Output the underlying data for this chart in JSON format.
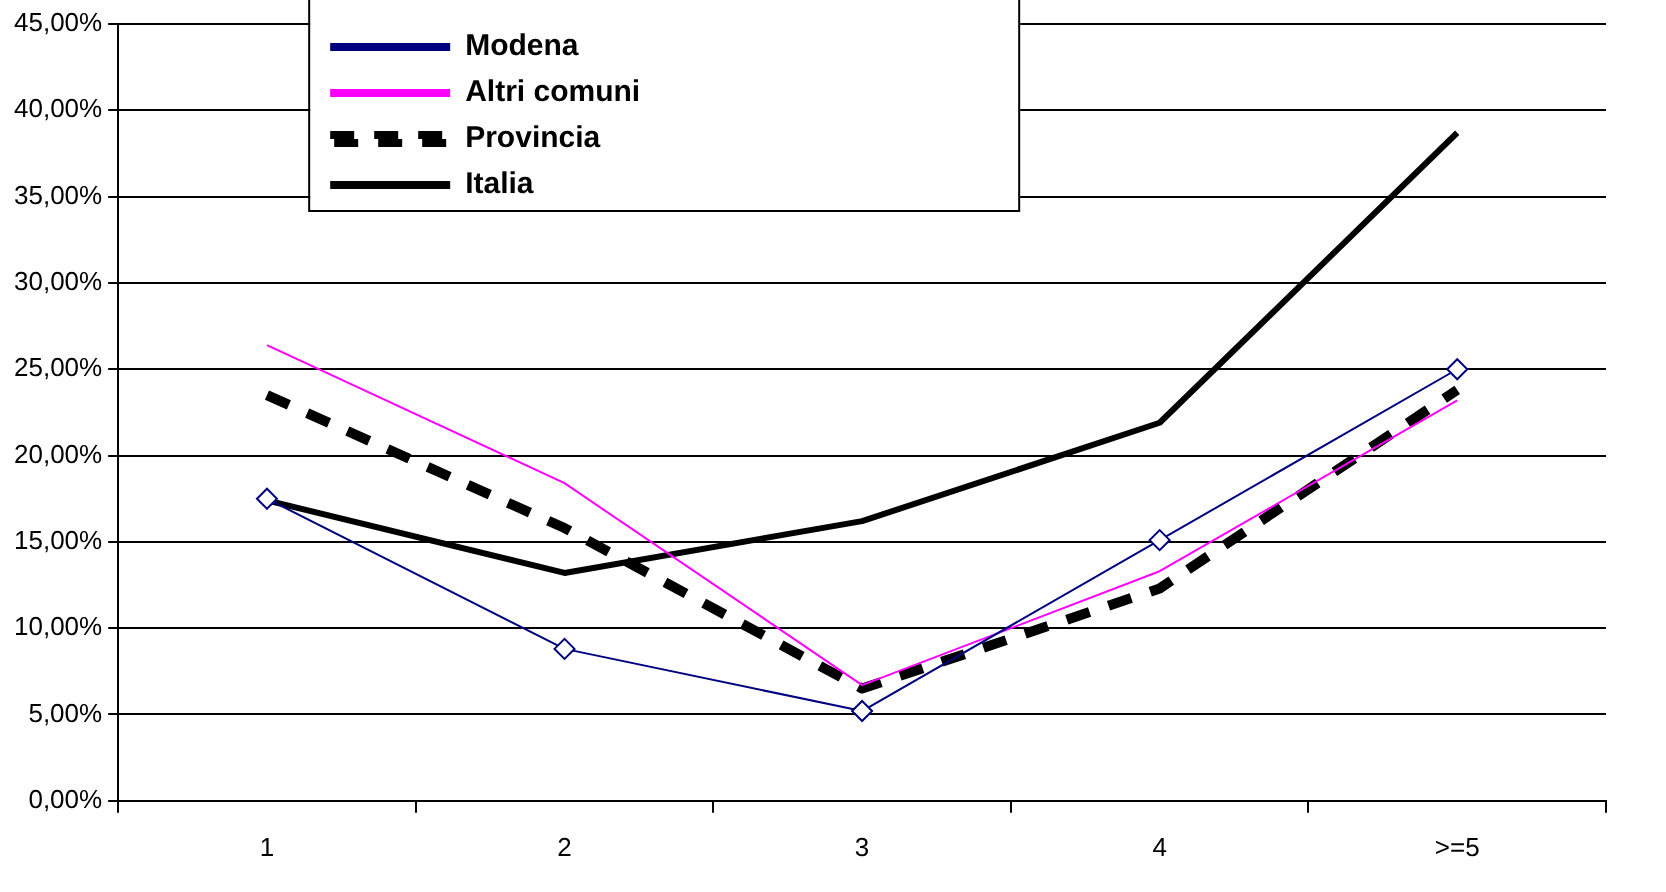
{
  "chart_data": {
    "type": "line",
    "categories": [
      "1",
      "2",
      "3",
      "4",
      ">=5"
    ],
    "series": [
      {
        "name": "Modena",
        "color": "#000080",
        "values": [
          17.5,
          8.8,
          5.2,
          15.1,
          25.0
        ],
        "marker": "diamond",
        "line_style": "solid"
      },
      {
        "name": "Altri comuni",
        "color": "#ff00ff",
        "values": [
          26.4,
          18.4,
          6.7,
          13.3,
          23.2
        ],
        "marker": "none",
        "line_style": "solid"
      },
      {
        "name": "Provincia",
        "color": "#000000",
        "values": [
          23.5,
          15.8,
          6.5,
          12.3,
          23.8
        ],
        "marker": "none",
        "line_style": "dashed"
      },
      {
        "name": "Italia",
        "color": "#000000",
        "values": [
          17.4,
          13.2,
          16.2,
          21.9,
          38.7
        ],
        "marker": "none",
        "line_style": "solid"
      }
    ],
    "ylim": [
      0,
      45
    ],
    "yticks": [
      {
        "value": 0,
        "label": "0,00%"
      },
      {
        "value": 5,
        "label": "5,00%"
      },
      {
        "value": 10,
        "label": "10,00%"
      },
      {
        "value": 15,
        "label": "15,00%"
      },
      {
        "value": 20,
        "label": "20,00%"
      },
      {
        "value": 25,
        "label": "25,00%"
      },
      {
        "value": 30,
        "label": "30,00%"
      },
      {
        "value": 35,
        "label": "35,00%"
      },
      {
        "value": 40,
        "label": "40,00%"
      },
      {
        "value": 45,
        "label": "45,00%"
      }
    ],
    "grid": "y",
    "legend": "top left"
  }
}
